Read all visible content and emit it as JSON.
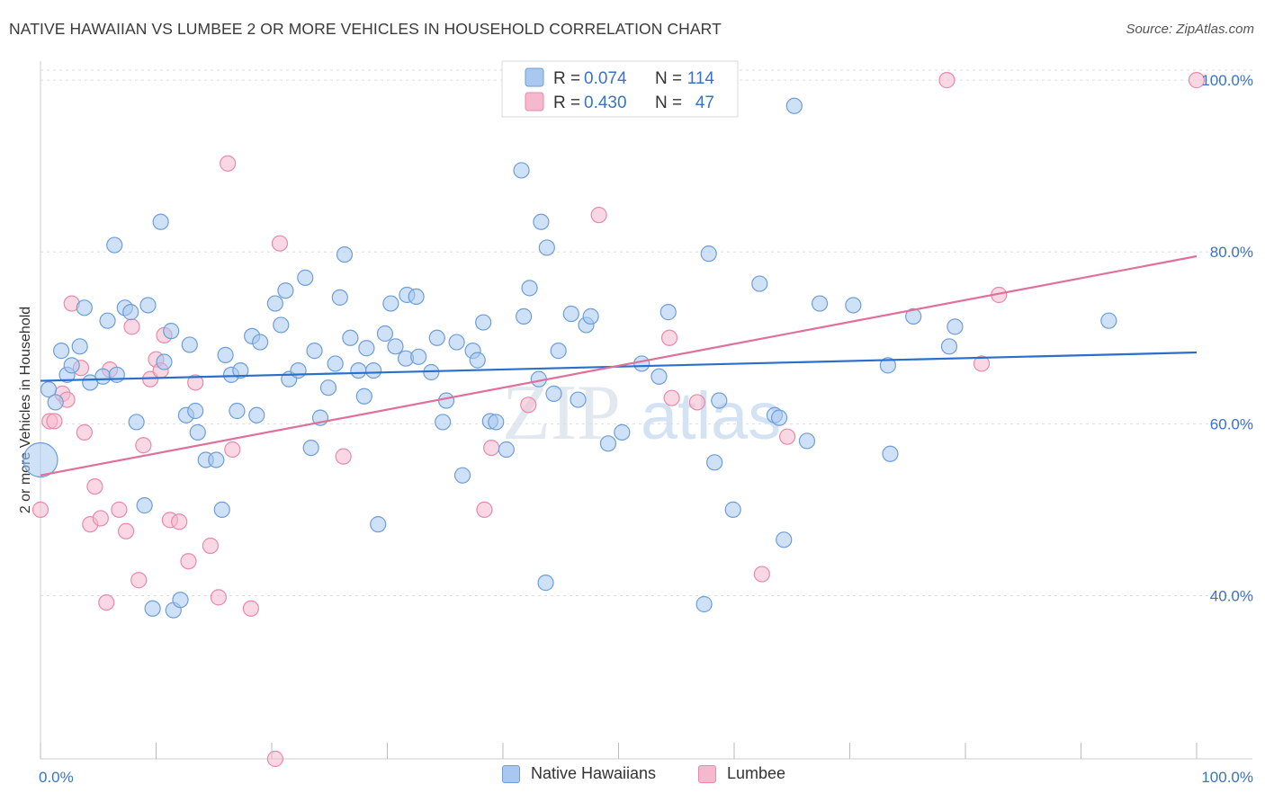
{
  "header": {
    "title": "NATIVE HAWAIIAN VS LUMBEE 2 OR MORE VEHICLES IN HOUSEHOLD CORRELATION CHART",
    "source": "Source: ZipAtlas.com"
  },
  "watermark": {
    "part1": "ZIP",
    "part2": "atlas"
  },
  "colors": {
    "blue_fill": "#a8c8f0",
    "blue_stroke": "#6e9ed8",
    "blue_line": "#2a6fcc",
    "pink_fill": "#f5b8cc",
    "pink_stroke": "#e88aa8",
    "pink_line": "#e0709a",
    "tick_label": "#3a72c8",
    "grid": "#dddddd"
  },
  "chart_data": {
    "type": "scatter",
    "title": "NATIVE HAWAIIAN VS LUMBEE 2 OR MORE VEHICLES IN HOUSEHOLD CORRELATION CHART",
    "xlabel": "",
    "ylabel": "2 or more Vehicles in Household",
    "xlim": [
      0,
      100
    ],
    "ylim": [
      21,
      102
    ],
    "x_tick_labels": [
      "0.0%",
      "100.0%"
    ],
    "y_ticks": [
      40,
      60,
      80,
      100
    ],
    "y_tick_labels": [
      "40.0%",
      "60.0%",
      "80.0%",
      "100.0%"
    ],
    "grid": "horizontal dashed",
    "legend_top": [
      {
        "r_label": "R =",
        "r_value": "0.074",
        "n_label": "N =",
        "n_value": "114"
      },
      {
        "r_label": "R =",
        "r_value": "0.430",
        "n_label": "N =",
        "n_value": "47"
      }
    ],
    "legend_bottom": [
      "Native Hawaiians",
      "Lumbee"
    ],
    "series": [
      {
        "name": "Native Hawaiians",
        "trend": {
          "x": [
            0,
            100
          ],
          "y": [
            65.0,
            68.3
          ]
        },
        "points": [
          [
            0.0,
            55.8
          ],
          [
            0.7,
            64.0
          ],
          [
            1.3,
            62.5
          ],
          [
            1.8,
            68.5
          ],
          [
            2.3,
            65.7
          ],
          [
            2.7,
            66.8
          ],
          [
            3.4,
            69.0
          ],
          [
            3.8,
            73.5
          ],
          [
            4.3,
            64.8
          ],
          [
            5.4,
            65.5
          ],
          [
            5.8,
            72.0
          ],
          [
            6.4,
            80.8
          ],
          [
            6.6,
            65.7
          ],
          [
            7.3,
            73.5
          ],
          [
            7.8,
            73.0
          ],
          [
            8.3,
            60.2
          ],
          [
            9.0,
            50.5
          ],
          [
            9.3,
            73.8
          ],
          [
            9.7,
            38.5
          ],
          [
            10.4,
            83.5
          ],
          [
            10.7,
            67.2
          ],
          [
            11.3,
            70.8
          ],
          [
            11.5,
            38.3
          ],
          [
            12.1,
            39.5
          ],
          [
            12.6,
            61.0
          ],
          [
            12.9,
            69.2
          ],
          [
            13.4,
            61.5
          ],
          [
            13.6,
            59.0
          ],
          [
            14.3,
            55.8
          ],
          [
            15.2,
            55.8
          ],
          [
            15.7,
            50.0
          ],
          [
            16.0,
            68.0
          ],
          [
            16.5,
            65.7
          ],
          [
            17.0,
            61.5
          ],
          [
            17.3,
            66.2
          ],
          [
            18.3,
            70.2
          ],
          [
            18.7,
            61.0
          ],
          [
            19.0,
            69.5
          ],
          [
            20.3,
            74.0
          ],
          [
            20.8,
            71.5
          ],
          [
            21.2,
            75.5
          ],
          [
            21.5,
            65.2
          ],
          [
            22.3,
            66.2
          ],
          [
            22.9,
            77.0
          ],
          [
            23.4,
            57.2
          ],
          [
            23.7,
            68.5
          ],
          [
            24.2,
            60.7
          ],
          [
            24.9,
            64.2
          ],
          [
            25.5,
            67.0
          ],
          [
            25.9,
            74.7
          ],
          [
            26.3,
            79.7
          ],
          [
            26.8,
            70.0
          ],
          [
            27.5,
            66.2
          ],
          [
            28.0,
            63.2
          ],
          [
            28.2,
            68.8
          ],
          [
            28.8,
            66.2
          ],
          [
            29.2,
            48.3
          ],
          [
            29.8,
            70.5
          ],
          [
            30.3,
            74.0
          ],
          [
            30.7,
            69.0
          ],
          [
            31.6,
            67.6
          ],
          [
            31.7,
            75.0
          ],
          [
            32.5,
            74.8
          ],
          [
            32.7,
            67.8
          ],
          [
            33.8,
            66.0
          ],
          [
            34.3,
            70.0
          ],
          [
            34.8,
            60.2
          ],
          [
            35.1,
            62.7
          ],
          [
            36.0,
            69.5
          ],
          [
            36.5,
            54.0
          ],
          [
            37.4,
            68.5
          ],
          [
            37.8,
            67.4
          ],
          [
            38.3,
            71.8
          ],
          [
            38.9,
            60.3
          ],
          [
            39.4,
            60.2
          ],
          [
            40.3,
            57.0
          ],
          [
            41.6,
            89.5
          ],
          [
            41.8,
            72.5
          ],
          [
            42.3,
            75.8
          ],
          [
            43.1,
            65.2
          ],
          [
            43.3,
            83.5
          ],
          [
            43.7,
            41.5
          ],
          [
            43.8,
            80.5
          ],
          [
            44.4,
            63.5
          ],
          [
            44.8,
            68.5
          ],
          [
            45.9,
            72.8
          ],
          [
            46.5,
            62.8
          ],
          [
            47.2,
            71.5
          ],
          [
            47.6,
            72.5
          ],
          [
            49.1,
            57.7
          ],
          [
            50.3,
            59.0
          ],
          [
            52.0,
            67.0
          ],
          [
            53.5,
            65.5
          ],
          [
            54.3,
            73.0
          ],
          [
            57.4,
            39.0
          ],
          [
            57.8,
            79.8
          ],
          [
            58.3,
            55.5
          ],
          [
            58.7,
            62.7
          ],
          [
            59.9,
            50.0
          ],
          [
            62.2,
            76.3
          ],
          [
            63.5,
            61.0
          ],
          [
            63.9,
            60.7
          ],
          [
            64.3,
            46.5
          ],
          [
            65.2,
            97.0
          ],
          [
            66.3,
            58.0
          ],
          [
            67.4,
            74.0
          ],
          [
            70.3,
            73.8
          ],
          [
            73.3,
            66.8
          ],
          [
            73.5,
            56.5
          ],
          [
            75.5,
            72.5
          ],
          [
            78.6,
            69.0
          ],
          [
            79.1,
            71.3
          ],
          [
            92.4,
            72.0
          ]
        ]
      },
      {
        "name": "Lumbee",
        "trend": {
          "x": [
            0,
            100
          ],
          "y": [
            54.0,
            79.5
          ]
        },
        "points": [
          [
            0.0,
            50.0
          ],
          [
            0.8,
            60.3
          ],
          [
            1.2,
            60.3
          ],
          [
            1.9,
            63.5
          ],
          [
            2.3,
            62.8
          ],
          [
            2.7,
            74.0
          ],
          [
            3.5,
            66.5
          ],
          [
            3.8,
            59.0
          ],
          [
            4.3,
            48.3
          ],
          [
            4.7,
            52.7
          ],
          [
            5.2,
            49.0
          ],
          [
            5.7,
            39.2
          ],
          [
            6.0,
            66.3
          ],
          [
            6.8,
            50.0
          ],
          [
            7.4,
            47.5
          ],
          [
            7.9,
            71.3
          ],
          [
            8.5,
            41.8
          ],
          [
            8.9,
            57.5
          ],
          [
            9.5,
            65.2
          ],
          [
            10.0,
            67.5
          ],
          [
            10.4,
            66.2
          ],
          [
            10.7,
            70.3
          ],
          [
            11.2,
            48.8
          ],
          [
            12.0,
            48.6
          ],
          [
            12.8,
            44.0
          ],
          [
            13.4,
            64.8
          ],
          [
            14.7,
            45.8
          ],
          [
            15.4,
            39.8
          ],
          [
            16.2,
            90.3
          ],
          [
            16.6,
            57.0
          ],
          [
            18.2,
            38.5
          ],
          [
            20.7,
            81.0
          ],
          [
            20.3,
            21.0
          ],
          [
            26.2,
            56.2
          ],
          [
            38.4,
            50.0
          ],
          [
            39.0,
            57.2
          ],
          [
            42.2,
            62.2
          ],
          [
            48.3,
            84.3
          ],
          [
            54.4,
            70.0
          ],
          [
            54.6,
            63.0
          ],
          [
            56.8,
            62.5
          ],
          [
            62.4,
            42.5
          ],
          [
            64.6,
            58.5
          ],
          [
            78.4,
            100.0
          ],
          [
            81.4,
            67.0
          ],
          [
            82.9,
            75.0
          ],
          [
            100.0,
            100.0
          ]
        ]
      }
    ]
  }
}
